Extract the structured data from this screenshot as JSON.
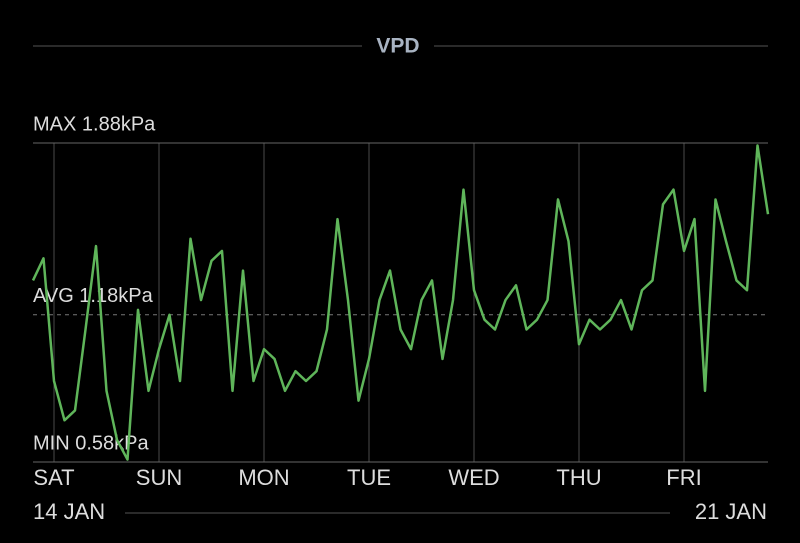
{
  "chart_data": {
    "type": "line",
    "title": "VPD",
    "x": [
      -0.2,
      -0.1,
      0,
      0.1,
      0.2,
      0.3,
      0.4,
      0.5,
      0.6,
      0.7,
      0.8,
      0.9,
      1,
      1.1,
      1.2,
      1.3,
      1.4,
      1.5,
      1.6,
      1.7,
      1.8,
      1.9,
      2,
      2.1,
      2.2,
      2.3,
      2.4,
      2.5,
      2.6,
      2.7,
      2.8,
      2.9,
      3,
      3.1,
      3.2,
      3.3,
      3.4,
      3.5,
      3.6,
      3.7,
      3.8,
      3.9,
      4,
      4.1,
      4.2,
      4.3,
      4.4,
      4.5,
      4.6,
      4.7,
      4.8,
      4.9,
      5,
      5.1,
      5.2,
      5.3,
      5.4,
      5.5,
      5.6,
      5.7,
      5.8,
      5.9,
      6,
      6.1,
      6.2,
      6.3,
      6.4,
      6.5,
      6.6,
      6.7,
      6.8
    ],
    "series": [
      {
        "name": "VPD",
        "color": "#5fb55a",
        "values": [
          1.32,
          1.41,
          0.91,
          0.75,
          0.79,
          1.12,
          1.46,
          0.87,
          0.67,
          0.59,
          1.2,
          0.87,
          1.04,
          1.18,
          0.91,
          1.49,
          1.24,
          1.4,
          1.44,
          0.87,
          1.36,
          0.91,
          1.04,
          1.0,
          0.87,
          0.95,
          0.91,
          0.95,
          1.12,
          1.57,
          1.24,
          0.83,
          1.0,
          1.24,
          1.36,
          1.12,
          1.04,
          1.24,
          1.32,
          1.0,
          1.24,
          1.69,
          1.28,
          1.16,
          1.12,
          1.24,
          1.3,
          1.12,
          1.16,
          1.24,
          1.65,
          1.48,
          1.06,
          1.16,
          1.12,
          1.16,
          1.24,
          1.12,
          1.28,
          1.32,
          1.63,
          1.69,
          1.44,
          1.57,
          0.87,
          1.65,
          1.48,
          1.32,
          1.28,
          1.87,
          1.59
        ]
      }
    ],
    "xlim": [
      -0.2,
      6.8
    ],
    "xticks": [
      {
        "value": 0,
        "label": "SAT"
      },
      {
        "value": 1,
        "label": "SUN"
      },
      {
        "value": 2,
        "label": "MON"
      },
      {
        "value": 3,
        "label": "TUE"
      },
      {
        "value": 4,
        "label": "WED"
      },
      {
        "value": 5,
        "label": "THU"
      },
      {
        "value": 6,
        "label": "FRI"
      }
    ],
    "ylim": [
      0.58,
      1.88
    ],
    "annotations": [
      {
        "label": "MAX 1.88kPa",
        "value": 1.88,
        "line_style": "solid"
      },
      {
        "label": "AVG 1.18kPa",
        "value": 1.18,
        "line_style": "dashed"
      },
      {
        "label": "MIN 0.58kPa",
        "value": 0.58,
        "line_style": "solid"
      }
    ],
    "date_start": "14 JAN",
    "date_end": "21 JAN"
  }
}
